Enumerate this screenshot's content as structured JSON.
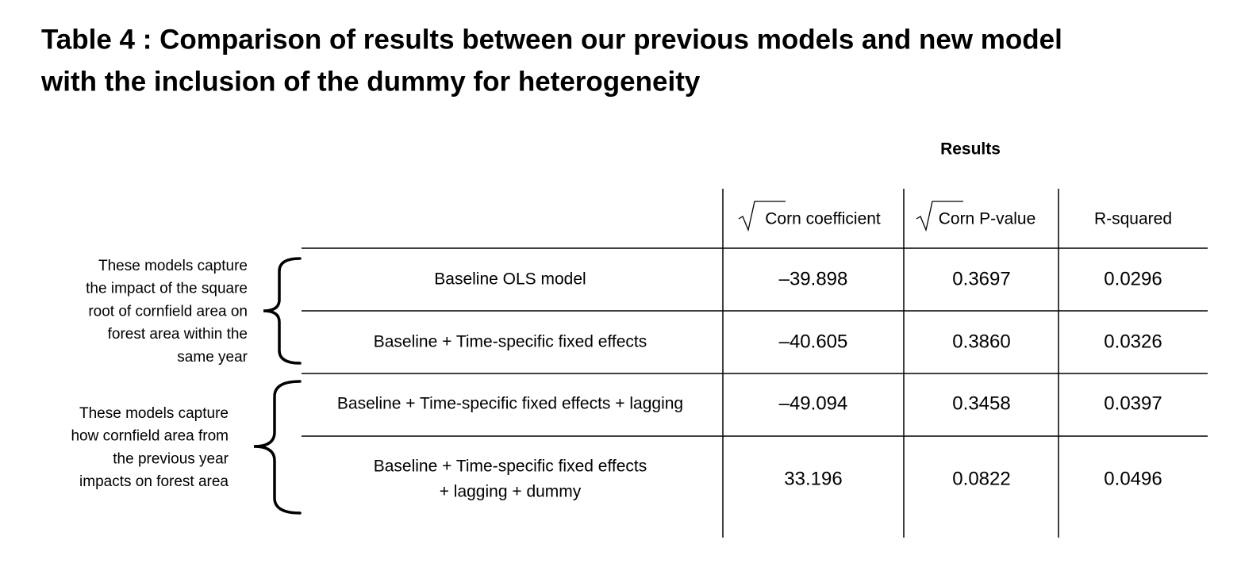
{
  "title": [
    "Table 4 : Comparison of results between our previous models and new model",
    "with the inclusion of the dummy for heterogeneity"
  ],
  "table": {
    "group_header": "Results",
    "columns": [
      "Corn coefficient",
      "Corn P-value",
      "R-squared"
    ],
    "rows": [
      {
        "model": [
          "Baseline OLS model"
        ],
        "cells": [
          "–39.898",
          "0.3697",
          "0.0296"
        ]
      },
      {
        "model": [
          "Baseline + Time-specific fixed effects"
        ],
        "cells": [
          "–40.605",
          "0.3860",
          "0.0326"
        ]
      },
      {
        "model": [
          "Baseline + Time-specific fixed effects + lagging"
        ],
        "cells": [
          "–49.094",
          "0.3458",
          "0.0397"
        ]
      },
      {
        "model": [
          "Baseline + Time-specific fixed effects",
          "+ lagging + dummy"
        ],
        "cells": [
          "33.196",
          "0.0822",
          "0.0496"
        ]
      }
    ]
  },
  "notes": [
    [
      "These models capture",
      "the impact of the square",
      "root of cornfield area on",
      "forest area within the",
      "same year"
    ],
    [
      "These models capture",
      "how cornfield area from",
      "the previous year",
      "impacts on forest area"
    ]
  ]
}
